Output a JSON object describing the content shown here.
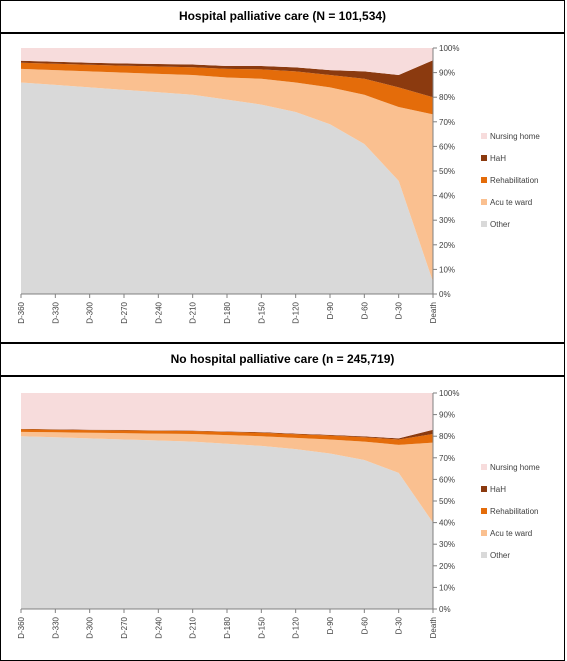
{
  "colors": {
    "nursing_home": "#f7dcdc",
    "hah": "#8b3a0f",
    "rehabilitation": "#e46c0a",
    "acute_ward": "#fac090",
    "other": "#d9d9d9"
  },
  "chart_data": [
    {
      "type": "area",
      "stacked": true,
      "normalized": true,
      "title": "Hospital palliative care (N = 101,534)",
      "x": [
        "D-360",
        "D-330",
        "D-300",
        "D-270",
        "D-240",
        "D-210",
        "D-180",
        "D-150",
        "D-120",
        "D-90",
        "D-60",
        "D-30",
        "Death"
      ],
      "ylim": [
        0,
        100
      ],
      "yticks": [
        "0%",
        "10%",
        "20%",
        "30%",
        "40%",
        "50%",
        "60%",
        "70%",
        "80%",
        "90%",
        "100%"
      ],
      "legend_position": "right",
      "series": [
        {
          "name": "Other",
          "values": [
            86,
            85,
            84,
            83,
            82,
            81,
            79,
            77,
            74,
            69,
            61,
            46,
            5
          ]
        },
        {
          "name": "Acu te ward",
          "values": [
            5.5,
            6,
            6.5,
            7,
            7.5,
            8,
            9,
            10.5,
            12,
            15,
            20,
            30,
            68
          ]
        },
        {
          "name": "Rehabilitation",
          "values": [
            2.5,
            2.6,
            2.7,
            2.8,
            3,
            3.2,
            3.5,
            3.8,
            4.5,
            5,
            6.5,
            8,
            7
          ]
        },
        {
          "name": "HaH",
          "values": [
            0.8,
            0.8,
            0.8,
            0.9,
            1,
            1.1,
            1.2,
            1.4,
            1.6,
            2,
            3,
            5,
            15
          ]
        },
        {
          "name": "Nursing home",
          "values": [
            5.2,
            5.6,
            6,
            6.3,
            6.5,
            6.7,
            7.3,
            7.3,
            7.9,
            9,
            9.5,
            11,
            5
          ]
        }
      ]
    },
    {
      "type": "area",
      "stacked": true,
      "normalized": true,
      "title": "No hospital palliative care (n = 245,719)",
      "x": [
        "D-360",
        "D-330",
        "D-300",
        "D-270",
        "D-240",
        "D-210",
        "D-180",
        "D-150",
        "D-120",
        "D-90",
        "D-60",
        "D-30",
        "Death"
      ],
      "ylim": [
        0,
        100
      ],
      "yticks": [
        "0%",
        "10%",
        "20%",
        "30%",
        "40%",
        "50%",
        "60%",
        "70%",
        "80%",
        "90%",
        "100%"
      ],
      "legend_position": "right",
      "series": [
        {
          "name": "Other",
          "values": [
            80,
            79.5,
            79,
            78.5,
            78,
            77.5,
            76.5,
            75.5,
            74,
            72,
            69,
            63,
            40
          ]
        },
        {
          "name": "Acu te ward",
          "values": [
            2,
            2.3,
            2.6,
            2.9,
            3.2,
            3.5,
            4,
            4.5,
            5.2,
            6.5,
            8.5,
            13,
            37
          ]
        },
        {
          "name": "Rehabilitation",
          "values": [
            1.2,
            1.2,
            1.2,
            1.3,
            1.3,
            1.4,
            1.5,
            1.6,
            1.7,
            1.8,
            2,
            2.5,
            4
          ]
        },
        {
          "name": "HaH",
          "values": [
            0.2,
            0.2,
            0.2,
            0.2,
            0.2,
            0.2,
            0.2,
            0.3,
            0.3,
            0.3,
            0.4,
            0.5,
            2
          ]
        },
        {
          "name": "Nursing home",
          "values": [
            16.6,
            16.8,
            17,
            17.1,
            17.3,
            17.4,
            17.8,
            18.1,
            18.8,
            19.4,
            20.1,
            21,
            17
          ]
        }
      ]
    }
  ]
}
